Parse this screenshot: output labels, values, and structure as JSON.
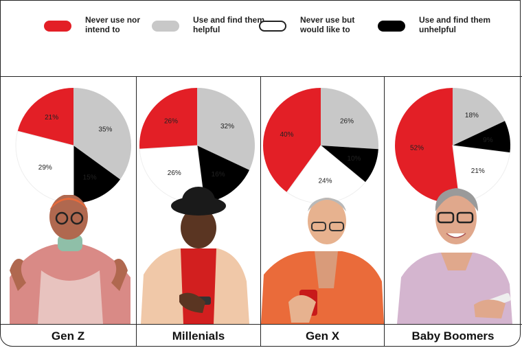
{
  "legend": [
    {
      "label": "Never use nor intend to",
      "color": "#e31f26",
      "outline": false
    },
    {
      "label": "Use and find them helpful",
      "color": "#c8c8c8",
      "outline": false
    },
    {
      "label": "Never use but would like to",
      "color": "#ffffff",
      "outline": true
    },
    {
      "label": "Use and find them unhelpful",
      "color": "#000000",
      "outline": false
    }
  ],
  "generations": [
    {
      "name": "Gen Z",
      "person_icon": "person-gen-z-photo"
    },
    {
      "name": "Millenials",
      "person_icon": "person-millenial-photo"
    },
    {
      "name": "Gen X",
      "person_icon": "person-gen-x-photo"
    },
    {
      "name": "Baby Boomers",
      "person_icon": "person-boomer-photo"
    }
  ],
  "chart_data": [
    {
      "type": "pie",
      "title": "Gen Z",
      "series": [
        {
          "name": "Never use nor intend to",
          "value": 21,
          "label": "21%"
        },
        {
          "name": "Use and find them helpful",
          "value": 35,
          "label": "35%"
        },
        {
          "name": "Use and find them unhelpful",
          "value": 15,
          "label": "15%"
        },
        {
          "name": "Never use but would like to",
          "value": 29,
          "label": "29%"
        }
      ]
    },
    {
      "type": "pie",
      "title": "Millenials",
      "series": [
        {
          "name": "Never use nor intend to",
          "value": 26,
          "label": "26%"
        },
        {
          "name": "Use and find them helpful",
          "value": 32,
          "label": "32%"
        },
        {
          "name": "Use and find them unhelpful",
          "value": 16,
          "label": "16%"
        },
        {
          "name": "Never use but would like to",
          "value": 26,
          "label": "26%"
        }
      ]
    },
    {
      "type": "pie",
      "title": "Gen X",
      "series": [
        {
          "name": "Never use nor intend to",
          "value": 40,
          "label": "40%"
        },
        {
          "name": "Use and find them helpful",
          "value": 26,
          "label": "26%"
        },
        {
          "name": "Use and find them unhelpful",
          "value": 10,
          "label": "10%"
        },
        {
          "name": "Never use but would like to",
          "value": 24,
          "label": "24%"
        }
      ]
    },
    {
      "type": "pie",
      "title": "Baby Boomers",
      "series": [
        {
          "name": "Never use nor intend to",
          "value": 52,
          "label": "52%"
        },
        {
          "name": "Use and find them helpful",
          "value": 18,
          "label": "18%"
        },
        {
          "name": "Use and find them unhelpful",
          "value": 9,
          "label": "9%"
        },
        {
          "name": "Never use but would like to",
          "value": 21,
          "label": "21%"
        }
      ]
    }
  ]
}
